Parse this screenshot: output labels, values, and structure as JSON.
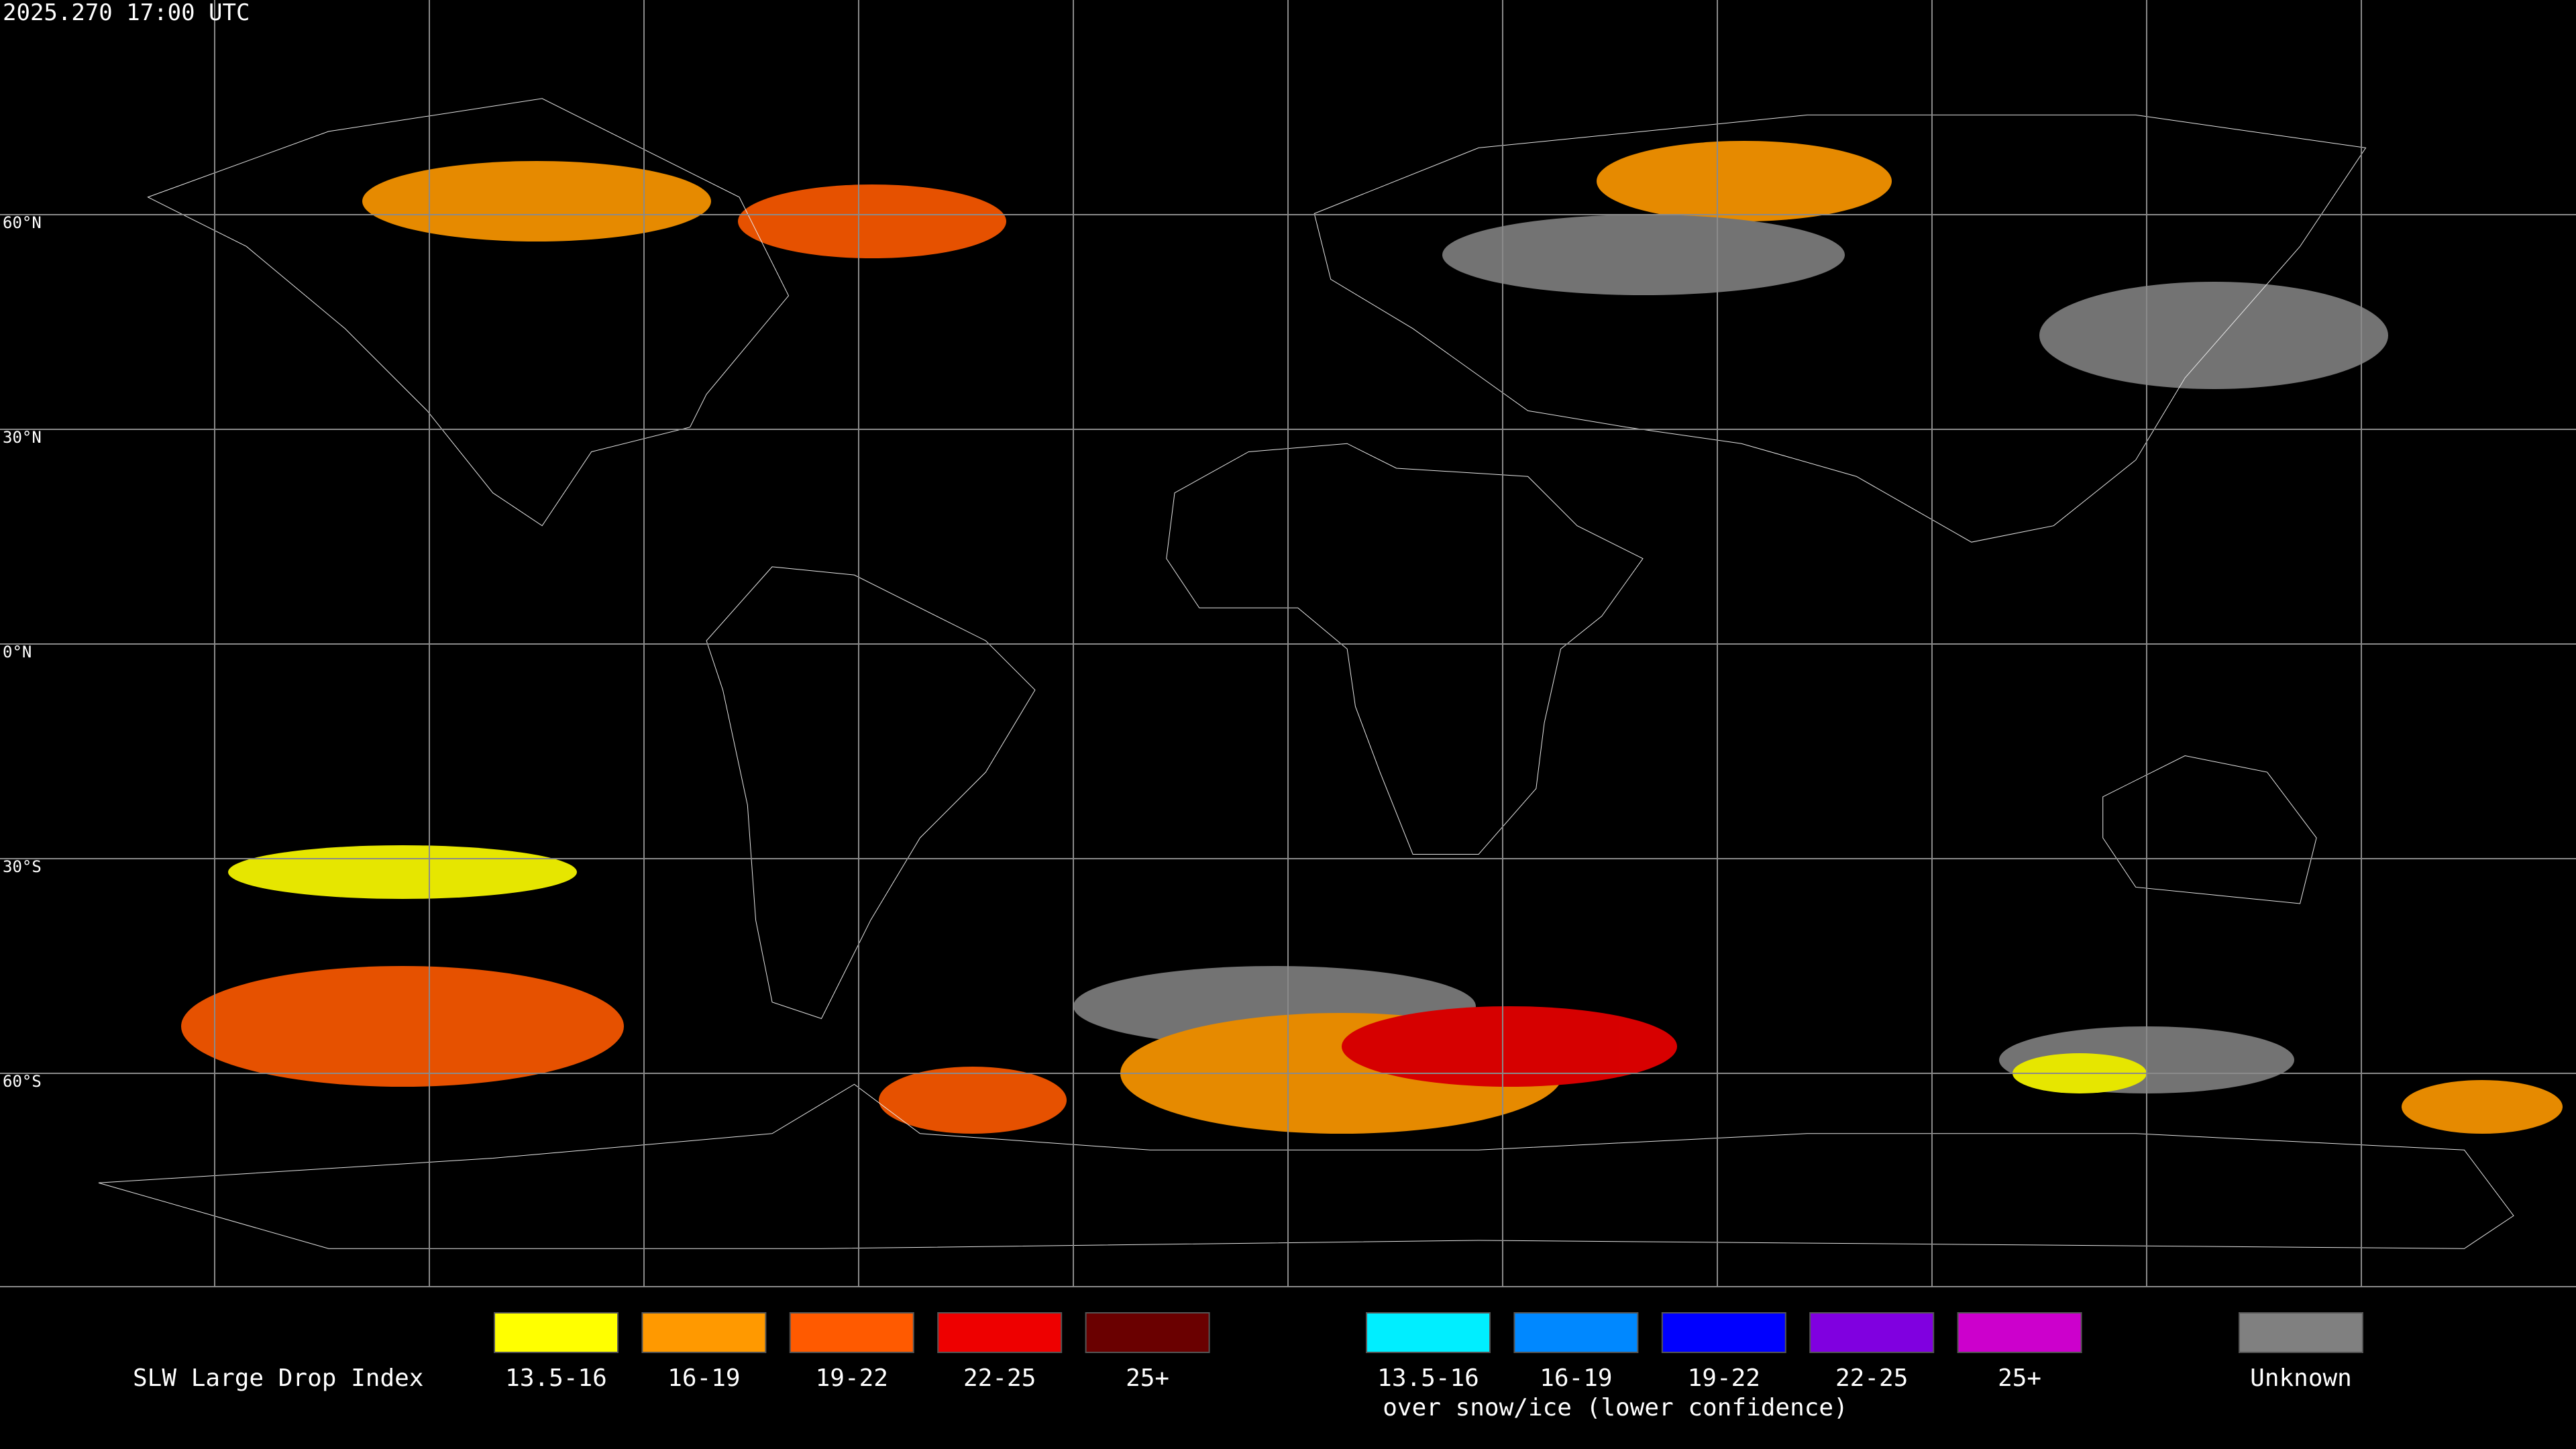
{
  "header": {
    "timestamp": "2025.270 17:00 UTC"
  },
  "map": {
    "latitude_labels": [
      "60°N",
      "30°N",
      "0°N",
      "30°S",
      "60°S"
    ]
  },
  "legend": {
    "title": "SLW Large Drop Index",
    "liquid": [
      {
        "label": "13.5-16",
        "color": "#ffff00"
      },
      {
        "label": "16-19",
        "color": "#ff9900"
      },
      {
        "label": "19-22",
        "color": "#ff5a00"
      },
      {
        "label": "22-25",
        "color": "#ee0000"
      },
      {
        "label": "25+",
        "color": "#6a0000"
      }
    ],
    "ice": [
      {
        "label": "13.5-16",
        "color": "#00eeff"
      },
      {
        "label": "16-19",
        "color": "#0088ff"
      },
      {
        "label": "19-22",
        "color": "#0000ff"
      },
      {
        "label": "22-25",
        "color": "#8000e0"
      },
      {
        "label": "25+",
        "color": "#cc00cc"
      }
    ],
    "ice_caption": "over snow/ice (lower confidence)",
    "unknown": {
      "label": "Unknown",
      "color": "#808080"
    }
  }
}
